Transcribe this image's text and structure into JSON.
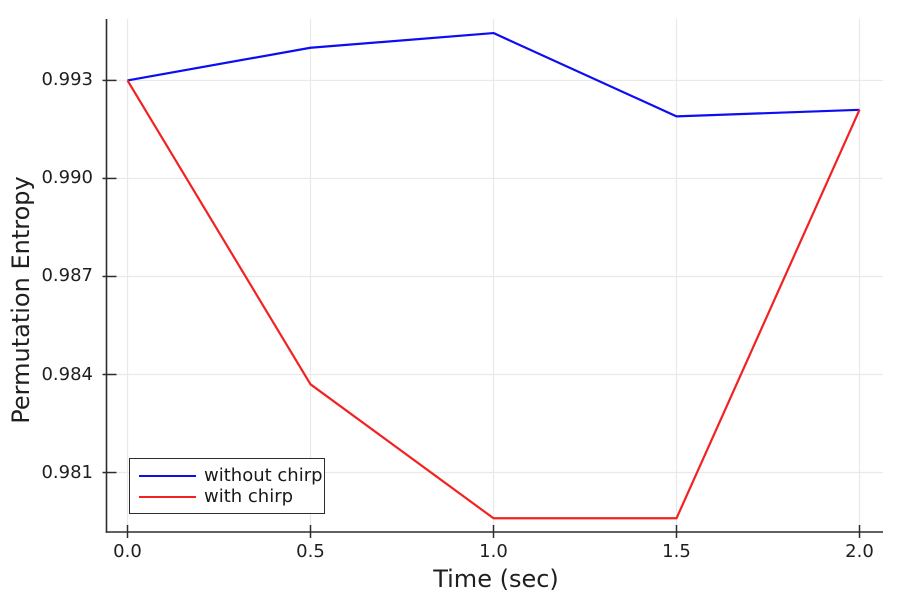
{
  "chart_data": {
    "type": "line",
    "title": "",
    "xlabel": "Time (sec)",
    "ylabel": "Permutation Entropy",
    "x": [
      0.0,
      0.5,
      1.0,
      1.5,
      2.0
    ],
    "series": [
      {
        "name": "without chirp",
        "color": "#0d0df2",
        "values": [
          0.993,
          0.994,
          0.99445,
          0.9919,
          0.9921
        ]
      },
      {
        "name": "with chirp",
        "color": "#f22222",
        "values": [
          0.993,
          0.9837,
          0.9796,
          0.9796,
          0.9921
        ]
      }
    ],
    "x_ticks": {
      "values": [
        0.0,
        0.5,
        1.0,
        1.5,
        2.0
      ],
      "labels": [
        "0.0",
        "0.5",
        "1.0",
        "1.5",
        "2.0"
      ]
    },
    "y_ticks": {
      "values": [
        0.981,
        0.984,
        0.987,
        0.99,
        0.993
      ],
      "labels": [
        "0.981",
        "0.984",
        "0.987",
        "0.990",
        "0.993"
      ]
    },
    "xlim": [
      -0.0574,
      2.0642
    ],
    "ylim": [
      0.97918,
      0.99488
    ],
    "grid": true,
    "legend_position": "bottom-left"
  },
  "legend": {
    "items": [
      {
        "label": "without chirp",
        "color": "#0d0df2"
      },
      {
        "label": "with chirp",
        "color": "#f22222"
      }
    ]
  },
  "colors": {
    "background": "#ffffff",
    "axis": "#2d2d2d",
    "grid": "#e9e9e9",
    "text": "#1f1f1f"
  }
}
